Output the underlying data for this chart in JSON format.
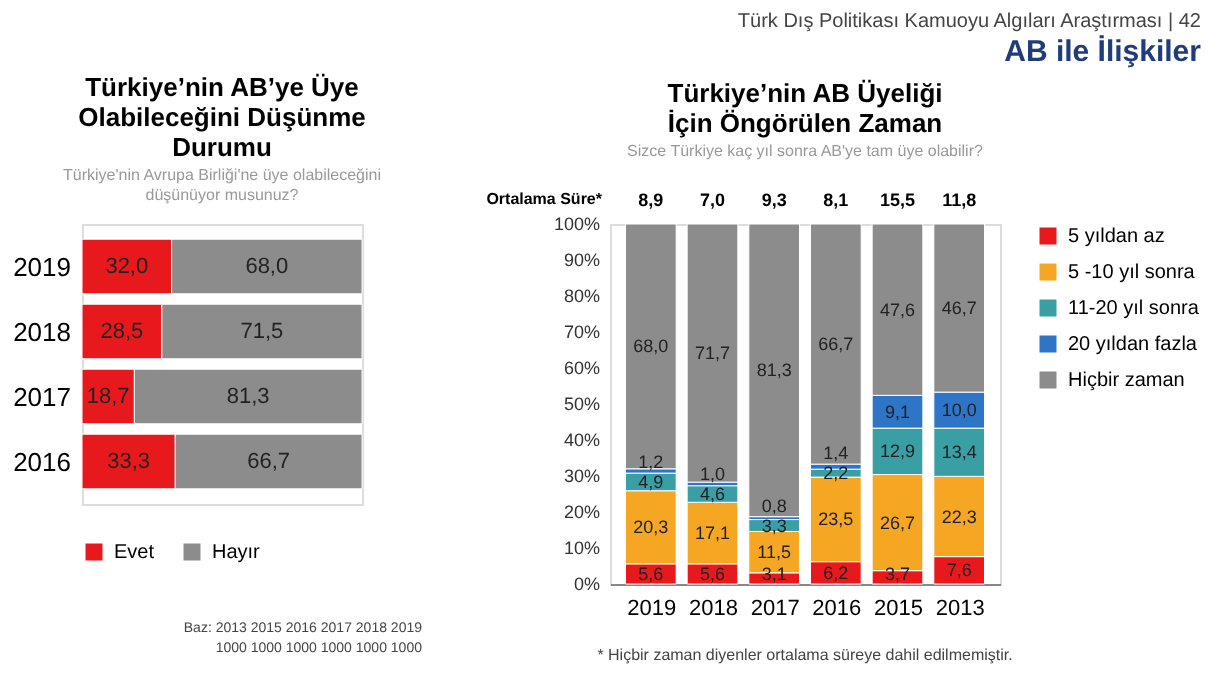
{
  "chart_data": [
    {
      "type": "bar",
      "orientation": "horizontal",
      "stacked": true,
      "title": "Türkiye’nin AB’ye Üye Olabileceğini Düşünme Durumu",
      "subtitle": "Türkiye'nin Avrupa Birliği'ne üye olabileceğini düşünüyor musunuz?",
      "categories": [
        "2019",
        "2018",
        "2017",
        "2016"
      ],
      "legend": "bottom",
      "tick_labels": "y",
      "series": [
        {
          "name": "Evet",
          "color": "#e8191c",
          "values": [
            32.0,
            28.5,
            18.7,
            33.3
          ],
          "value_labels": [
            "32,0",
            "28,5",
            "18,7",
            "33,3"
          ]
        },
        {
          "name": "Hayır",
          "color": "#8c8c8c",
          "values": [
            68.0,
            71.5,
            81.3,
            66.7
          ],
          "value_labels": [
            "68,0",
            "71,5",
            "81,3",
            "66,7"
          ]
        }
      ],
      "annotations": [
        "Baz:  2013  2015  2016  2017  2018  2019",
        "1000  1000  1000  1000  1000  1000"
      ]
    },
    {
      "type": "bar",
      "stacked": true,
      "title": "Türkiye’nin AB Üyeliği İçin Öngörülen Zaman",
      "subtitle": "Sizce Türkiye kaç yıl sonra AB'ye tam üye olabilir?",
      "categories": [
        "2019",
        "2018",
        "2017",
        "2016",
        "2015",
        "2013"
      ],
      "legend": "right",
      "ylim": [
        0,
        100
      ],
      "yticks": [
        {
          "value": 0,
          "label": "0%"
        },
        {
          "value": 10,
          "label": "10%"
        },
        {
          "value": 20,
          "label": "20%"
        },
        {
          "value": 30,
          "label": "30%"
        },
        {
          "value": 40,
          "label": "40%"
        },
        {
          "value": 50,
          "label": "50%"
        },
        {
          "value": 60,
          "label": "60%"
        },
        {
          "value": 70,
          "label": "70%"
        },
        {
          "value": 80,
          "label": "80%"
        },
        {
          "value": 90,
          "label": "90%"
        },
        {
          "value": 100,
          "label": "100%"
        }
      ],
      "series": [
        {
          "name": "5 yıldan az",
          "color": "#e8191c",
          "values": [
            5.6,
            5.6,
            3.1,
            6.2,
            3.7,
            7.6
          ],
          "value_labels": [
            "5,6",
            "5,6",
            "3,1",
            "6,2",
            "3,7",
            "7,6"
          ]
        },
        {
          "name": "5 -10 yıl sonra",
          "color": "#f5a623",
          "values": [
            20.3,
            17.1,
            11.5,
            23.5,
            26.7,
            22.3
          ],
          "value_labels": [
            "20,3",
            "17,1",
            "11,5",
            "23,5",
            "26,7",
            "22,3"
          ]
        },
        {
          "name": "11-20 yıl sonra",
          "color": "#3a9ea5",
          "values": [
            4.9,
            4.6,
            3.3,
            2.2,
            12.9,
            13.4
          ],
          "value_labels": [
            "4,9",
            "4,6",
            "3,3",
            "2,2",
            "12,9",
            "13,4"
          ]
        },
        {
          "name": "20 yıldan fazla",
          "color": "#2e75c7",
          "values": [
            1.2,
            1.0,
            0.8,
            1.4,
            9.1,
            10.0
          ],
          "value_labels": [
            "1,2",
            "1,0",
            "0,8",
            "1,4",
            "9,1",
            "10,0"
          ]
        },
        {
          "name": "Hiçbir zaman",
          "color": "#8c8c8c",
          "values": [
            68.0,
            71.7,
            81.3,
            66.7,
            47.6,
            46.7
          ],
          "value_labels": [
            "68,0",
            "71,7",
            "81,3",
            "66,7",
            "47,6",
            "46,7"
          ]
        }
      ],
      "annotations": [
        "Türk Dış Politikası Kamuoyu Algıları Araştırması | 42",
        "AB ile İlişkiler",
        "Ortalama Süre*",
        "8,9",
        "7,0",
        "9,3",
        "8,1",
        "15,5",
        "11,8",
        "* Hiçbir zaman diyenler ortalama süreye dahil edilmemiştir."
      ]
    }
  ]
}
